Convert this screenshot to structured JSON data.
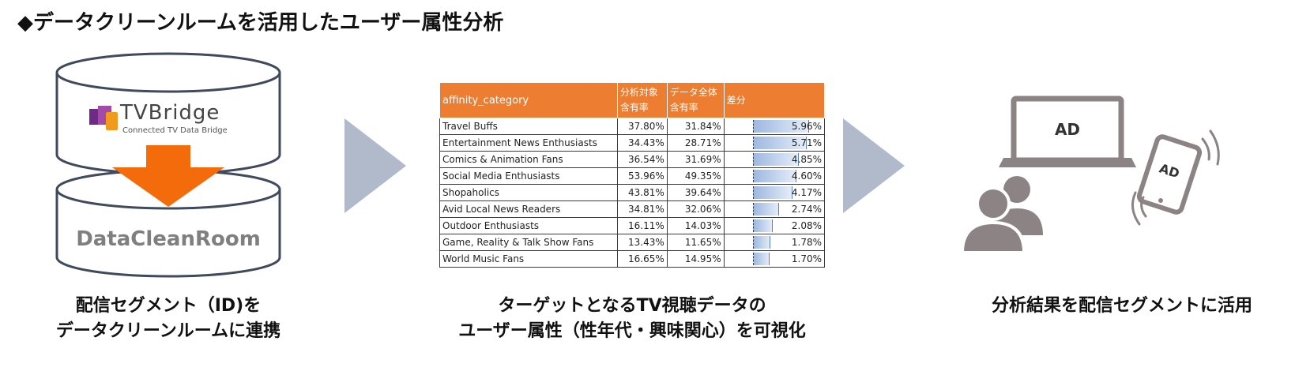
{
  "title": "◆データクリーンルームを活用したユーザー属性分析",
  "left_panel": {
    "brand_name": "TVBridge",
    "brand_tagline": "Connected TV Data Bridge",
    "dcr_label": "DataCleanRoom",
    "caption_line1": "配信セグメント（ID)を",
    "caption_line2": "データクリーンルームに連携"
  },
  "middle_panel": {
    "caption_line1": "ターゲットとなるTV視聴データの",
    "caption_line2": "ユーザー属性（性年代・興味関心）を可視化"
  },
  "right_panel": {
    "laptop_ad": "AD",
    "phone_ad": "AD",
    "caption": "分析結果を配信セグメントに活用"
  },
  "colors": {
    "table_header": "#ED7D31",
    "arrow_orange": "#F46B0B",
    "chevron": "#B0BACB",
    "icon_gray": "#8C8385",
    "databar": "#9DB8E0"
  },
  "chart_data": {
    "type": "table",
    "headers": {
      "category": "affinity_category",
      "target_line1": "分析対象",
      "target_line2": "含有率",
      "all_line1": "データ全体",
      "all_line2": "含有率",
      "diff": "差分"
    },
    "rows": [
      {
        "category": "Travel Buffs",
        "target": "37.80%",
        "all": "31.84%",
        "diff": "5.96%",
        "diff_value": 5.96
      },
      {
        "category": "Entertainment News Enthusiasts",
        "target": "34.43%",
        "all": "28.71%",
        "diff": "5.71%",
        "diff_value": 5.71
      },
      {
        "category": "Comics & Animation Fans",
        "target": "36.54%",
        "all": "31.69%",
        "diff": "4.85%",
        "diff_value": 4.85
      },
      {
        "category": "Social Media Enthusiasts",
        "target": "53.96%",
        "all": "49.35%",
        "diff": "4.60%",
        "diff_value": 4.6
      },
      {
        "category": "Shopaholics",
        "target": "43.81%",
        "all": "39.64%",
        "diff": "4.17%",
        "diff_value": 4.17
      },
      {
        "category": "Avid Local News Readers",
        "target": "34.81%",
        "all": "32.06%",
        "diff": "2.74%",
        "diff_value": 2.74
      },
      {
        "category": "Outdoor Enthusiasts",
        "target": "16.11%",
        "all": "14.03%",
        "diff": "2.08%",
        "diff_value": 2.08
      },
      {
        "category": "Game, Reality & Talk Show Fans",
        "target": "13.43%",
        "all": "11.65%",
        "diff": "1.78%",
        "diff_value": 1.78
      },
      {
        "category": "World Music Fans",
        "target": "16.65%",
        "all": "14.95%",
        "diff": "1.70%",
        "diff_value": 1.7
      }
    ],
    "diff_max": 5.96
  }
}
